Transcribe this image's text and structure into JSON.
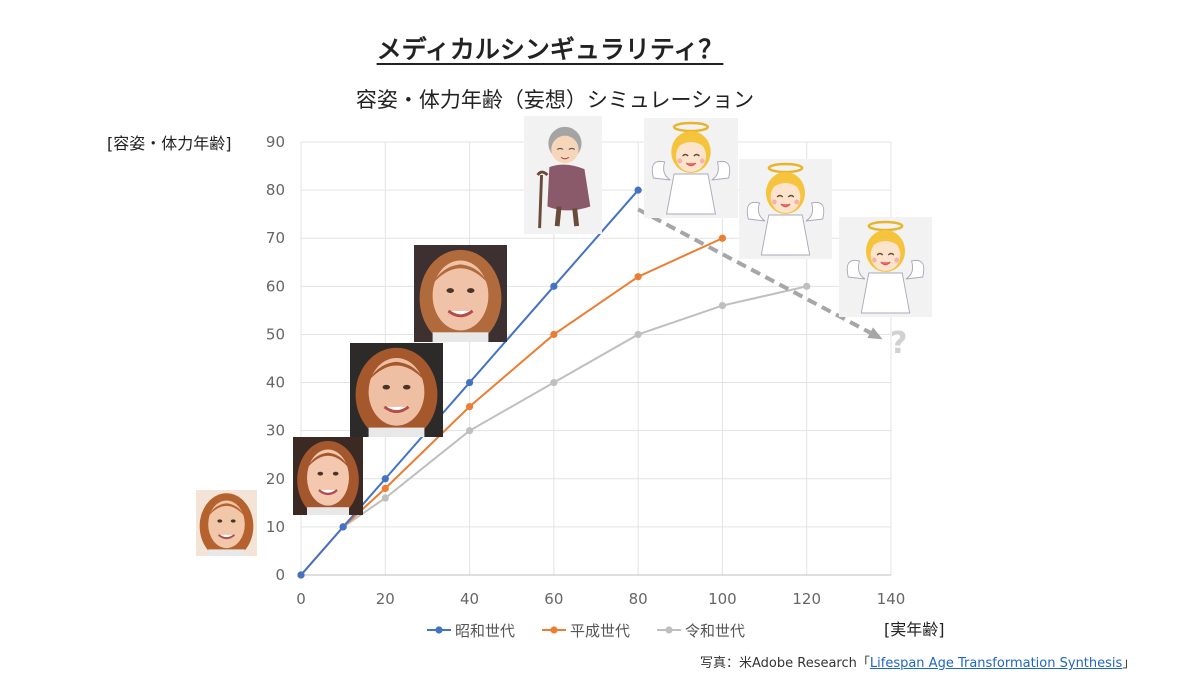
{
  "title": "メディカルシンギュラリティ？",
  "subtitle": "容姿・体力年齢（妄想）シミュレーション",
  "credit": {
    "prefix": "写真：米Adobe Research「",
    "link_text": "Lifespan Age Transformation Synthesis",
    "suffix": "」"
  },
  "question_mark": "?",
  "chart_data": {
    "type": "line",
    "ylabel": "[容姿・体力年齢]",
    "xlabel": "[実年齢]",
    "xlim": [
      0,
      140
    ],
    "ylim": [
      0,
      90
    ],
    "x_ticks": [
      0,
      20,
      40,
      60,
      80,
      100,
      120,
      140
    ],
    "y_ticks": [
      0,
      10,
      20,
      30,
      40,
      50,
      60,
      70,
      80,
      90
    ],
    "grid": true,
    "legend_position": "bottom",
    "series": [
      {
        "name": "昭和世代",
        "color": "#4472c4",
        "points": [
          [
            0,
            0
          ],
          [
            10,
            10
          ],
          [
            20,
            20
          ],
          [
            40,
            40
          ],
          [
            60,
            60
          ],
          [
            80,
            80
          ]
        ]
      },
      {
        "name": "平成世代",
        "color": "#ed7d31",
        "points": [
          [
            0,
            0
          ],
          [
            10,
            10
          ],
          [
            20,
            18
          ],
          [
            40,
            35
          ],
          [
            60,
            50
          ],
          [
            80,
            62
          ],
          [
            100,
            70
          ]
        ]
      },
      {
        "name": "令和世代",
        "color": "#bfbfbf",
        "points": [
          [
            0,
            0
          ],
          [
            10,
            10
          ],
          [
            20,
            16
          ],
          [
            40,
            30
          ],
          [
            60,
            40
          ],
          [
            80,
            50
          ],
          [
            100,
            56
          ],
          [
            120,
            60
          ]
        ]
      }
    ],
    "annotations": [
      {
        "type": "dashed-arrow",
        "color": "#a6a6a6",
        "from": [
          80,
          76
        ],
        "to": [
          138,
          49
        ]
      }
    ]
  },
  "photos": [
    {
      "name": "child-photo",
      "kind": "face",
      "hair": "#b5622f",
      "skin": "#f2c6a8",
      "bg": "#f4e4d8"
    },
    {
      "name": "girl-photo",
      "kind": "face",
      "hair": "#a4562c",
      "skin": "#f3c8ae",
      "bg": "#3b2a24"
    },
    {
      "name": "young-woman-photo",
      "kind": "face",
      "hair": "#a5582c",
      "skin": "#efbfa4",
      "bg": "#2d2a2a"
    },
    {
      "name": "middle-aged-woman-photo",
      "kind": "face",
      "hair": "#b06a3c",
      "skin": "#f0c2a8",
      "bg": "#3d3030"
    },
    {
      "name": "elderly-woman-illustration",
      "kind": "elder",
      "hair": "#a4a4a4",
      "skin": "#f6d5b8",
      "bg": "#f2f2f2"
    },
    {
      "name": "angel-illustration-1",
      "kind": "angel",
      "hair": "#f6c43c",
      "skin": "#fbe3cc",
      "bg": "#f2f2f2"
    },
    {
      "name": "angel-illustration-2",
      "kind": "angel",
      "hair": "#f6c43c",
      "skin": "#fbe3cc",
      "bg": "#f2f2f2"
    },
    {
      "name": "angel-illustration-3",
      "kind": "angel",
      "hair": "#f6c43c",
      "skin": "#fbe3cc",
      "bg": "#f2f2f2"
    }
  ]
}
